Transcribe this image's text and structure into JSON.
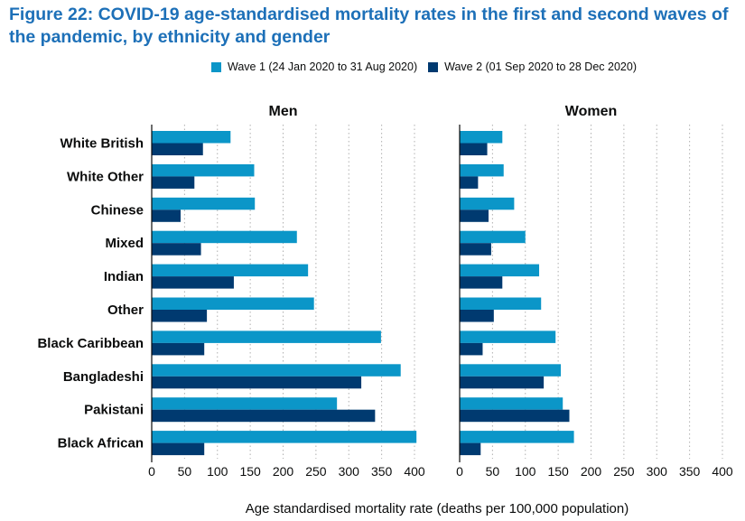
{
  "title": "Figure 22: COVID-19 age-standardised mortality rates in the first and second waves of the pandemic, by ethnicity and gender",
  "colors": {
    "wave1": "#0b96c8",
    "wave2": "#003a70",
    "grid": "#b0b0b0",
    "axis": "#0b0c0c"
  },
  "legend": [
    {
      "label": "Wave 1 (24 Jan 2020 to 31 Aug 2020)",
      "color": "#0b96c8"
    },
    {
      "label": "Wave 2 (01 Sep 2020 to 28 Dec 2020)",
      "color": "#003a70"
    }
  ],
  "chart_data": {
    "type": "bar",
    "orientation": "horizontal",
    "xlabel": "Age standardised mortality rate (deaths per 100,000 population)",
    "xlim": [
      0,
      400
    ],
    "xticks": [
      0,
      50,
      100,
      150,
      200,
      250,
      300,
      350,
      400
    ],
    "grid": "vertical dotted",
    "legend_position": "top",
    "categories": [
      "White British",
      "White Other",
      "Chinese",
      "Mixed",
      "Indian",
      "Other",
      "Black Caribbean",
      "Bangladeshi",
      "Pakistani",
      "Black African"
    ],
    "panels": [
      {
        "title": "Men",
        "series": [
          {
            "name": "Wave 1 (24 Jan 2020 to 31 Aug 2020)",
            "values": [
              120,
              156,
              157,
              221,
              238,
              247,
              349,
              379,
              282,
              403
            ]
          },
          {
            "name": "Wave 2 (01 Sep 2020 to 28 Dec 2020)",
            "values": [
              78,
              65,
              44,
              75,
              125,
              84,
              80,
              319,
              340,
              80
            ]
          }
        ]
      },
      {
        "title": "Women",
        "series": [
          {
            "name": "Wave 1 (24 Jan 2020 to 31 Aug 2020)",
            "values": [
              65,
              67,
              83,
              100,
              121,
              124,
              146,
              154,
              157,
              174
            ]
          },
          {
            "name": "Wave 2 (01 Sep 2020 to 28 Dec 2020)",
            "values": [
              42,
              28,
              44,
              48,
              65,
              52,
              35,
              128,
              167,
              32
            ]
          }
        ]
      }
    ]
  }
}
